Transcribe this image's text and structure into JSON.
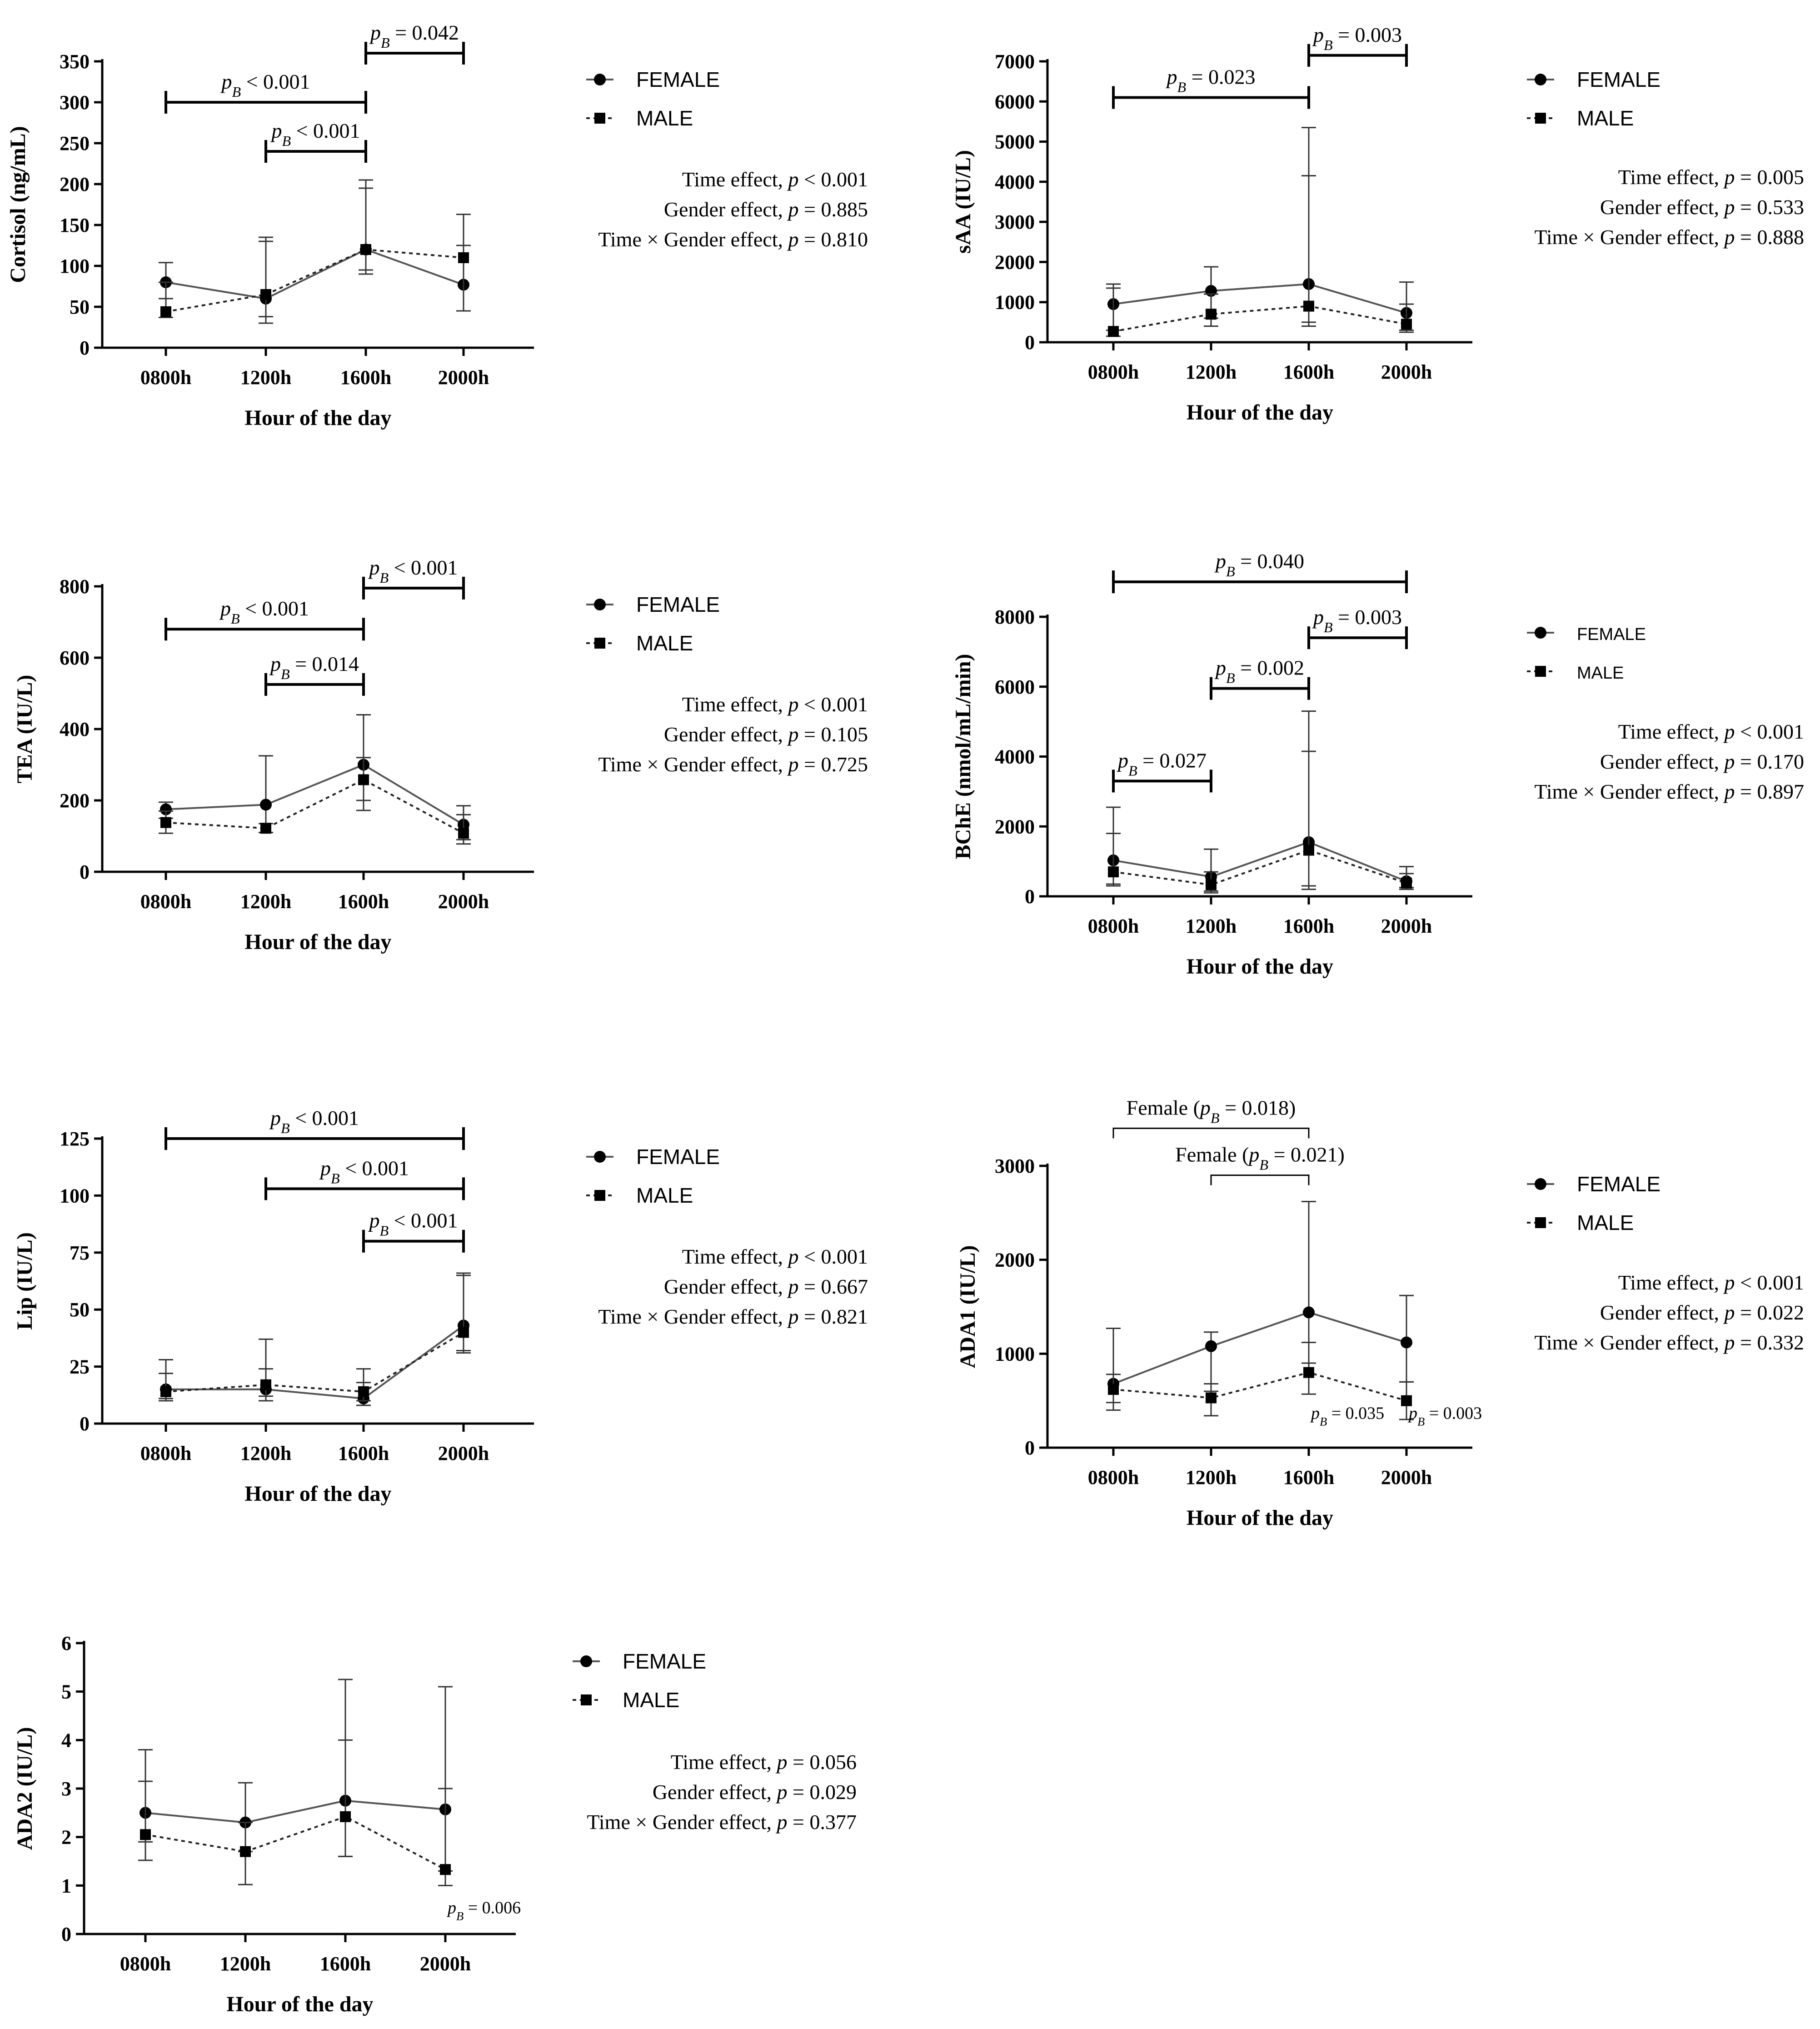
{
  "figure": {
    "colors": {
      "axis": "#000000",
      "female_line": "#555555",
      "male_line": "#222222"
    },
    "legend_labels": {
      "female": "FEMALE",
      "male": "MALE"
    }
  },
  "chart_data": [
    {
      "id": "cortisol",
      "type": "line",
      "title": "",
      "xlabel": "Hour of the day",
      "ylabel": "Cortisol (ng/mL)",
      "categories": [
        "0800h",
        "1200h",
        "1600h",
        "2000h"
      ],
      "ylim": [
        0,
        350
      ],
      "yticks": [
        0,
        50,
        100,
        150,
        200,
        250,
        300,
        350
      ],
      "series": [
        {
          "name": "FEMALE",
          "values": [
            80,
            60,
            120,
            77
          ],
          "err_hi": [
            104,
            130,
            205,
            163
          ],
          "err_lo": [
            60,
            38,
            90,
            45
          ]
        },
        {
          "name": "MALE",
          "values": [
            44,
            65,
            120,
            110
          ],
          "err_hi": [
            80,
            135,
            195,
            125
          ],
          "err_lo": [
            37,
            30,
            95,
            45
          ]
        }
      ],
      "brackets": [
        {
          "from": 0,
          "to": 2,
          "y": 300,
          "label_pre": "p",
          "label_sub": "B",
          "label_post": " < 0.001"
        },
        {
          "from": 1,
          "to": 2,
          "y": 240,
          "label_pre": "p",
          "label_sub": "B",
          "label_post": " < 0.001"
        },
        {
          "from": 2,
          "to": 3,
          "y": 360,
          "label_pre": "p",
          "label_sub": "B",
          "label_post": " = 0.042"
        }
      ],
      "effects": [
        "Time effect, p < 0.001",
        "Gender effect, p = 0.885",
        "Time × Gender effect, p = 0.810"
      ]
    },
    {
      "id": "saa",
      "type": "line",
      "xlabel": "Hour of the day",
      "ylabel": "sAA (IU/L)",
      "categories": [
        "0800h",
        "1200h",
        "1600h",
        "2000h"
      ],
      "ylim": [
        0,
        7000
      ],
      "yticks": [
        0,
        1000,
        2000,
        3000,
        4000,
        5000,
        6000,
        7000
      ],
      "series": [
        {
          "name": "FEMALE",
          "values": [
            950,
            1280,
            1450,
            730
          ],
          "err_hi": [
            1450,
            1880,
            5350,
            1500
          ],
          "err_lo": [
            300,
            600,
            500,
            300
          ]
        },
        {
          "name": "MALE",
          "values": [
            270,
            700,
            900,
            450
          ],
          "err_hi": [
            1350,
            1200,
            4150,
            950
          ],
          "err_lo": [
            150,
            400,
            400,
            250
          ]
        }
      ],
      "brackets": [
        {
          "from": 0,
          "to": 2,
          "y": 6100,
          "label_pre": "p",
          "label_sub": "B",
          "label_post": " = 0.023"
        },
        {
          "from": 2,
          "to": 3,
          "y": 7150,
          "label_pre": "p",
          "label_sub": "B",
          "label_post": " = 0.003"
        }
      ],
      "effects": [
        "Time effect, p = 0.005",
        "Gender effect, p = 0.533",
        "Time × Gender effect, p = 0.888"
      ]
    },
    {
      "id": "tea",
      "type": "line",
      "xlabel": "Hour of the day",
      "ylabel": "TEA (IU/L)",
      "categories": [
        "0800h",
        "1200h",
        "1600h",
        "2000h"
      ],
      "ylim": [
        0,
        800
      ],
      "yticks": [
        0,
        200,
        400,
        600,
        800
      ],
      "series": [
        {
          "name": "FEMALE",
          "values": [
            175,
            188,
            300,
            132
          ],
          "err_hi": [
            195,
            325,
            440,
            185
          ],
          "err_lo": [
            150,
            110,
            200,
            90
          ]
        },
        {
          "name": "MALE",
          "values": [
            138,
            122,
            258,
            108
          ],
          "err_hi": [
            170,
            135,
            320,
            160
          ],
          "err_lo": [
            108,
            110,
            172,
            78
          ]
        }
      ],
      "brackets": [
        {
          "from": 0,
          "to": 2,
          "y": 680,
          "label_pre": "p",
          "label_sub": "B",
          "label_post": " < 0.001"
        },
        {
          "from": 1,
          "to": 2,
          "y": 525,
          "label_pre": "p",
          "label_sub": "B",
          "label_post": " = 0.014"
        },
        {
          "from": 2,
          "to": 3,
          "y": 795,
          "label_pre": "p",
          "label_sub": "B",
          "label_post": " < 0.001"
        }
      ],
      "effects": [
        "Time effect, p < 0.001",
        "Gender effect, p = 0.105",
        "Time × Gender effect, p = 0.725"
      ]
    },
    {
      "id": "bche",
      "type": "line",
      "xlabel": "Hour of the day",
      "ylabel": "BChE (nmol/mL/min)",
      "categories": [
        "0800h",
        "1200h",
        "1600h",
        "2000h"
      ],
      "ylim": [
        0,
        8000
      ],
      "yticks": [
        0,
        2000,
        4000,
        6000,
        8000
      ],
      "series": [
        {
          "name": "FEMALE",
          "values": [
            1030,
            560,
            1550,
            430
          ],
          "err_hi": [
            2550,
            1350,
            5300,
            850
          ],
          "err_lo": [
            350,
            150,
            300,
            250
          ]
        },
        {
          "name": "MALE",
          "values": [
            700,
            330,
            1320,
            380
          ],
          "err_hi": [
            1800,
            700,
            4150,
            650
          ],
          "err_lo": [
            300,
            100,
            200,
            200
          ]
        }
      ],
      "brackets": [
        {
          "from": 0,
          "to": 1,
          "y": 3300,
          "label_pre": "p",
          "label_sub": "B",
          "label_post": " = 0.027"
        },
        {
          "from": 1,
          "to": 2,
          "y": 5950,
          "label_pre": "p",
          "label_sub": "B",
          "label_post": " = 0.002"
        },
        {
          "from": 2,
          "to": 3,
          "y": 7400,
          "label_pre": "p",
          "label_sub": "B",
          "label_post": " = 0.003"
        },
        {
          "from": 0,
          "to": 3,
          "y": 9000,
          "label_pre": "p",
          "label_sub": "B",
          "label_post": " = 0.040"
        }
      ],
      "effects": [
        "Time effect, p < 0.001",
        "Gender effect, p = 0.170",
        "Time × Gender effect, p = 0.897"
      ]
    },
    {
      "id": "lip",
      "type": "line",
      "xlabel": "Hour of the day",
      "ylabel": "Lip (IU/L)",
      "categories": [
        "0800h",
        "1200h",
        "1600h",
        "2000h"
      ],
      "ylim": [
        0,
        125
      ],
      "yticks": [
        0,
        25,
        50,
        75,
        100,
        125
      ],
      "series": [
        {
          "name": "FEMALE",
          "values": [
            15,
            15,
            11,
            43
          ],
          "err_hi": [
            28,
            37,
            24,
            66
          ],
          "err_lo": [
            10,
            10,
            8,
            32
          ]
        },
        {
          "name": "MALE",
          "values": [
            14,
            17,
            14,
            40
          ],
          "err_hi": [
            22,
            24,
            18,
            65
          ],
          "err_lo": [
            11,
            12,
            10,
            31
          ]
        }
      ],
      "brackets": [
        {
          "from": 0,
          "to": 3,
          "y": 125,
          "label_pre": "p",
          "label_sub": "B",
          "label_post": " < 0.001"
        },
        {
          "from": 1,
          "to": 3,
          "y": 103,
          "label_pre": "p",
          "label_sub": "B",
          "label_post": " < 0.001"
        },
        {
          "from": 2,
          "to": 3,
          "y": 80,
          "label_pre": "p",
          "label_sub": "B",
          "label_post": " < 0.001"
        }
      ],
      "effects": [
        "Time effect, p < 0.001",
        "Gender effect, p = 0.667",
        "Time × Gender effect, p = 0.821"
      ]
    },
    {
      "id": "ada1",
      "type": "line",
      "xlabel": "Hour of the day",
      "ylabel": "ADA1 (IU/L)",
      "categories": [
        "0800h",
        "1200h",
        "1600h",
        "2000h"
      ],
      "ylim": [
        0,
        3000
      ],
      "yticks": [
        0,
        1000,
        2000,
        3000
      ],
      "series": [
        {
          "name": "FEMALE",
          "values": [
            680,
            1080,
            1440,
            1120
          ],
          "err_hi": [
            1270,
            1230,
            2620,
            1620
          ],
          "err_lo": [
            480,
            600,
            900,
            700
          ]
        },
        {
          "name": "MALE",
          "values": [
            620,
            530,
            800,
            500
          ],
          "err_hi": [
            780,
            680,
            1120,
            700
          ],
          "err_lo": [
            400,
            340,
            570,
            300
          ]
        }
      ],
      "brackets": [
        {
          "from": 0,
          "to": 2,
          "y": 3400,
          "thin": true,
          "label_pre": "Female (p",
          "label_sub": "B",
          "label_post": " = 0.018)"
        },
        {
          "from": 1,
          "to": 2,
          "y": 2900,
          "thin": true,
          "label_pre": "Female (p",
          "label_sub": "B",
          "label_post": " = 0.021)"
        }
      ],
      "point_notes": [
        {
          "at": 2,
          "value": 500,
          "label_pre": "p",
          "label_sub": "B",
          "label_post": " = 0.035"
        },
        {
          "at": 3,
          "value": 500,
          "label_pre": "p",
          "label_sub": "B",
          "label_post": " = 0.003"
        }
      ],
      "effects": [
        "Time effect, p < 0.001",
        "Gender effect, p = 0.022",
        "Time × Gender effect, p = 0.332"
      ]
    },
    {
      "id": "ada2",
      "type": "line",
      "xlabel": "Hour of the day",
      "ylabel": "ADA2 (IU/L)",
      "categories": [
        "0800h",
        "1200h",
        "1600h",
        "2000h"
      ],
      "ylim": [
        0,
        6
      ],
      "yticks": [
        0,
        1,
        2,
        3,
        4,
        5,
        6
      ],
      "series": [
        {
          "name": "FEMALE",
          "values": [
            2.5,
            2.3,
            2.75,
            2.57
          ],
          "err_hi": [
            3.8,
            3.12,
            5.25,
            5.1
          ],
          "err_lo": [
            1.9,
            1.7,
            1.6,
            1.3
          ]
        },
        {
          "name": "MALE",
          "values": [
            2.05,
            1.7,
            2.42,
            1.33
          ],
          "err_hi": [
            3.15,
            2.3,
            4.0,
            3.0
          ],
          "err_lo": [
            1.52,
            1.02,
            1.6,
            1.0
          ]
        }
      ],
      "brackets": [],
      "point_notes": [
        {
          "at": 3,
          "value": 0.8,
          "label_pre": "p",
          "label_sub": "B",
          "label_post": " = 0.006"
        }
      ],
      "effects": [
        "Time effect, p = 0.056",
        "Gender effect, p = 0.029",
        "Time × Gender effect, p = 0.377"
      ]
    }
  ]
}
